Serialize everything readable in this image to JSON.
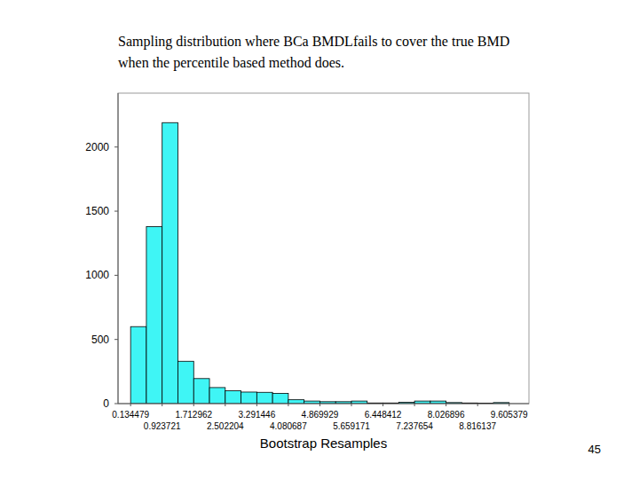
{
  "chart_data": {
    "type": "histogram",
    "title": "Sampling distribution where BCa BMDLfails to cover the true BMD when the percentile based method does.",
    "x_label": "Bootstrap Resamples",
    "annotations": [
      "45"
    ],
    "bins": [
      0.134479,
      0.5291,
      0.923721,
      1.318342,
      1.712962,
      2.107583,
      2.502204,
      2.896825,
      3.291446,
      3.686066,
      4.080687,
      4.475308,
      4.869929,
      5.26455,
      5.659171,
      6.053791,
      6.448412,
      6.843033,
      7.237654,
      7.632275,
      8.026896,
      8.421516,
      8.816137,
      9.210758,
      9.605379
    ],
    "values": [
      600,
      1380,
      2190,
      330,
      195,
      125,
      100,
      90,
      88,
      80,
      30,
      20,
      15,
      15,
      20,
      5,
      5,
      10,
      20,
      20,
      8,
      5,
      3,
      8
    ],
    "color": "#3ff5f5",
    "xlim": [
      -0.18,
      10.1
    ],
    "xticks": [
      0.134479,
      0.923721,
      1.712962,
      2.502204,
      3.291446,
      4.080687,
      4.869929,
      5.659171,
      6.448412,
      7.237654,
      8.026896,
      8.816137,
      9.605379
    ],
    "ylim": [
      0,
      2420
    ],
    "yticks": [
      0,
      500,
      1000,
      1500,
      2000
    ],
    "grid": false
  }
}
